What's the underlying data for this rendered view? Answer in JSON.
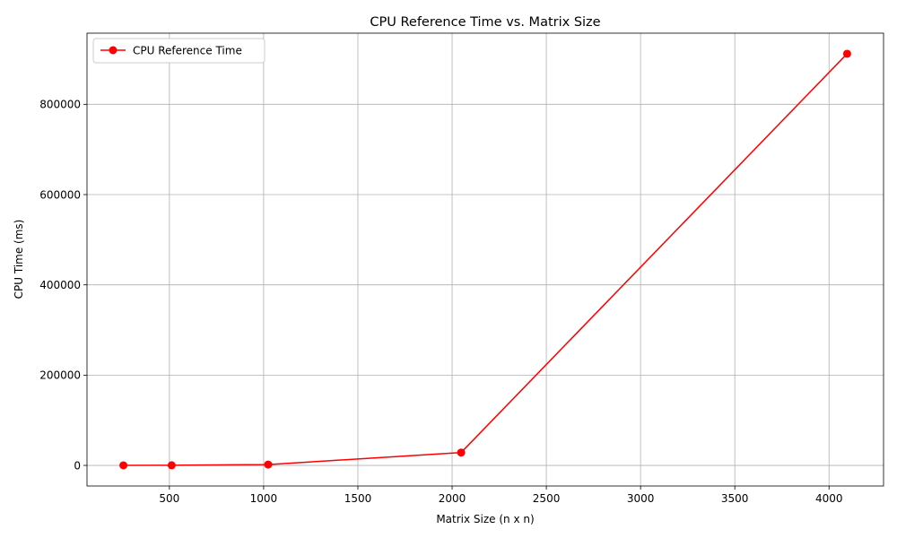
{
  "chart_data": {
    "type": "line",
    "title": "CPU Reference Time vs. Matrix Size",
    "xlabel": "Matrix Size (n x n)",
    "ylabel": "CPU Time (ms)",
    "xlim": [
      62.8,
      4289.2
    ],
    "ylim": [
      -45600,
      957600
    ],
    "x_ticks": [
      500,
      1000,
      1500,
      2000,
      2500,
      3000,
      3500,
      4000
    ],
    "x_tick_labels": [
      "500",
      "1000",
      "1500",
      "2000",
      "2500",
      "3000",
      "3500",
      "4000"
    ],
    "y_ticks": [
      0,
      200000,
      400000,
      600000,
      800000
    ],
    "y_tick_labels": [
      "0",
      "200000",
      "400000",
      "600000",
      "800000"
    ],
    "grid": true,
    "legend_position": "top-left",
    "series": [
      {
        "name": "CPU Reference Time",
        "color": "#ff0000",
        "marker": "circle",
        "x": [
          256,
          512,
          1024,
          2048,
          4096
        ],
        "y": [
          100,
          300,
          1900,
          28500,
          912000
        ]
      }
    ]
  }
}
